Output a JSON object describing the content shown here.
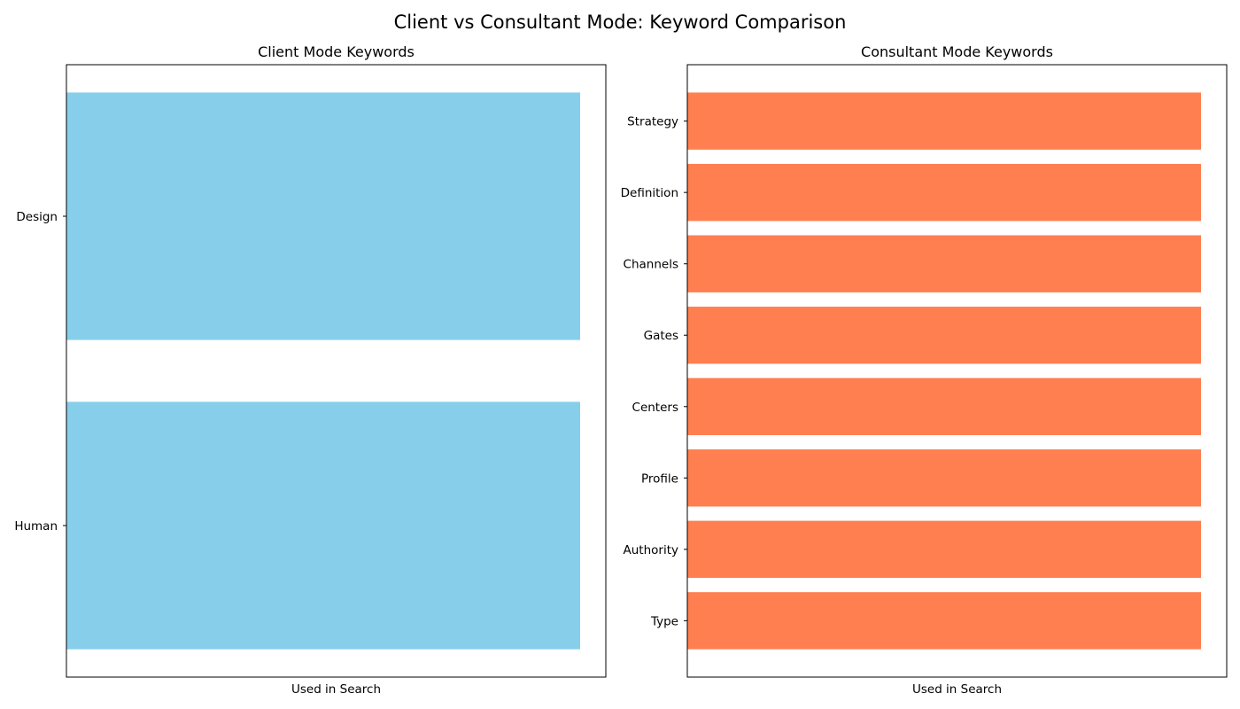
{
  "figure": {
    "suptitle": "Client vs Consultant Mode: Keyword Comparison"
  },
  "chart_data": [
    {
      "type": "bar",
      "orientation": "horizontal",
      "title": "Client Mode Keywords",
      "xlabel": "Used in Search",
      "ylabel": "",
      "categories": [
        "Human",
        "Design"
      ],
      "values": [
        1,
        1
      ],
      "xlim": [
        0,
        1.05
      ],
      "color": "#87ceeb",
      "grid": false,
      "legend": "none"
    },
    {
      "type": "bar",
      "orientation": "horizontal",
      "title": "Consultant Mode Keywords",
      "xlabel": "Used in Search",
      "ylabel": "",
      "categories": [
        "Type",
        "Authority",
        "Profile",
        "Centers",
        "Gates",
        "Channels",
        "Definition",
        "Strategy"
      ],
      "values": [
        1,
        1,
        1,
        1,
        1,
        1,
        1,
        1
      ],
      "xlim": [
        0,
        1.05
      ],
      "color": "#ff7f50",
      "grid": false,
      "legend": "none"
    }
  ]
}
